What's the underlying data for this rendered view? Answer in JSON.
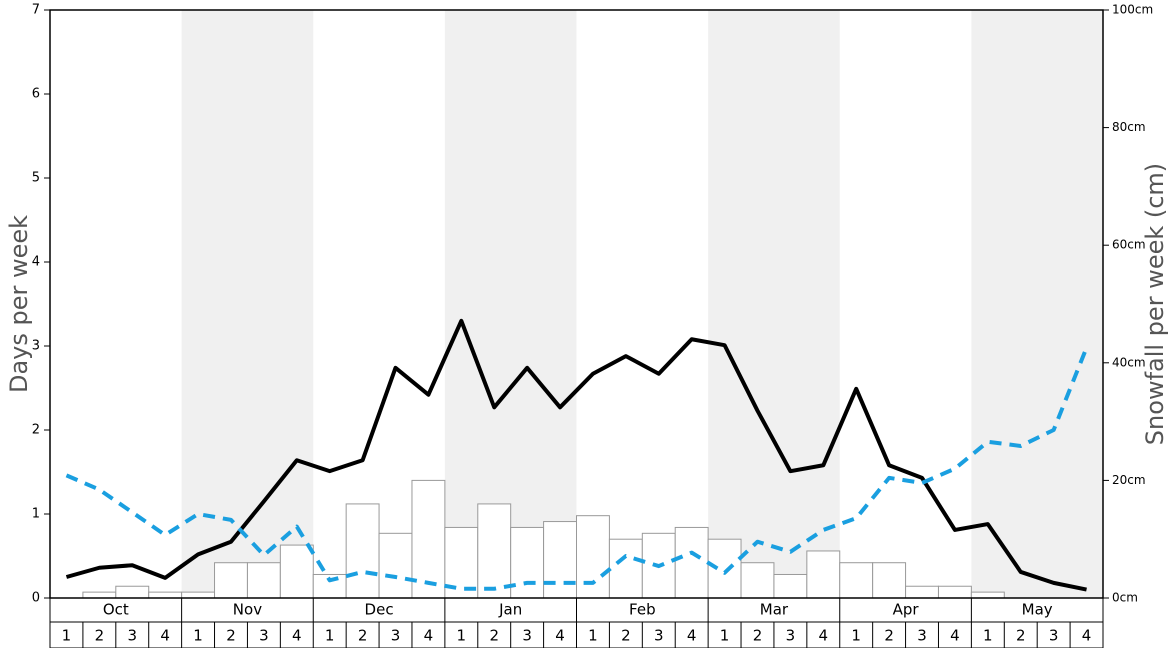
{
  "chart_data": {
    "type": "bar",
    "ylabel": "Days per week",
    "y2label": "Snowfall per week (cm)",
    "months": [
      "Oct",
      "Nov",
      "Dec",
      "Jan",
      "Feb",
      "Mar",
      "Apr",
      "May"
    ],
    "weeks": [
      "1",
      "2",
      "3",
      "4"
    ],
    "band_color": "#f0f0f0",
    "ylim": [
      0,
      7
    ],
    "yticks": [
      0,
      1,
      2,
      3,
      4,
      5,
      6,
      7
    ],
    "y2lim": [
      0,
      100
    ],
    "y2ticks": [
      {
        "value": 0,
        "label": "0cm"
      },
      {
        "value": 20,
        "label": "20cm"
      },
      {
        "value": 40,
        "label": "40cm"
      },
      {
        "value": 60,
        "label": "60cm"
      },
      {
        "value": 80,
        "label": "80cm"
      },
      {
        "value": 100,
        "label": "100cm"
      }
    ],
    "series": [
      {
        "type": "bar",
        "axis": "y2",
        "color": "#ffffff",
        "values": [
          0,
          1,
          2,
          1,
          1,
          6,
          6,
          9,
          4,
          16,
          11,
          20,
          12,
          16,
          12,
          13,
          14,
          10,
          11,
          12,
          10,
          6,
          4,
          8,
          6,
          6,
          2,
          2,
          1,
          0,
          0,
          0
        ]
      },
      {
        "type": "line",
        "color": "#000000",
        "values": [
          0.25,
          0.36,
          0.39,
          0.24,
          0.52,
          0.67,
          1.15,
          1.64,
          1.51,
          1.64,
          2.74,
          2.42,
          3.3,
          2.27,
          2.74,
          2.27,
          2.67,
          2.88,
          2.67,
          3.08,
          3.01,
          2.23,
          1.51,
          1.58,
          2.49,
          1.58,
          1.43,
          0.81,
          0.88,
          0.31,
          0.18,
          0.1
        ]
      },
      {
        "type": "line",
        "color": "#1a9fe0",
        "linestyle": "dashed",
        "values": [
          1.46,
          1.29,
          1.02,
          0.75,
          1.0,
          0.93,
          0.51,
          0.85,
          0.21,
          0.31,
          0.25,
          0.18,
          0.11,
          0.11,
          0.18,
          0.18,
          0.18,
          0.5,
          0.38,
          0.54,
          0.3,
          0.67,
          0.55,
          0.81,
          0.95,
          1.43,
          1.37,
          1.54,
          1.86,
          1.81,
          2.0,
          2.98
        ]
      }
    ]
  }
}
